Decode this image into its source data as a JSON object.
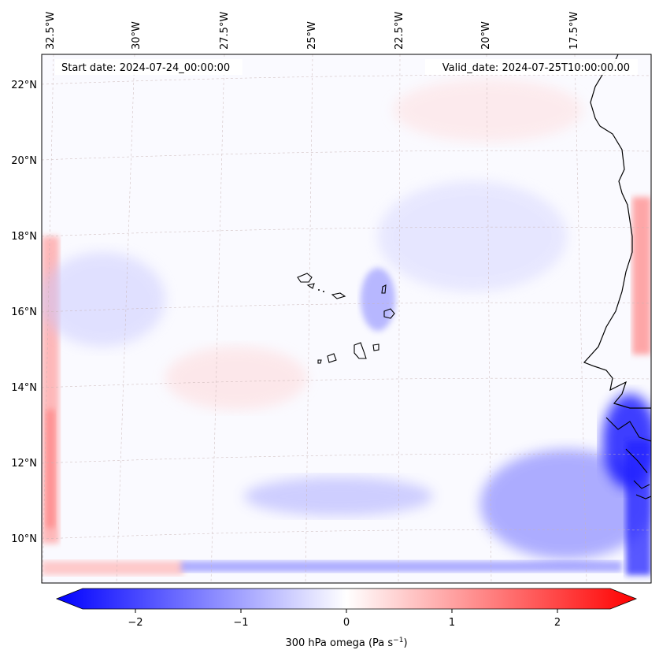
{
  "header": {
    "start_date": "Start date: 2024-07-24_00:00:00",
    "valid_date": "Valid_date: 2024-07-25T10:00:00.00"
  },
  "axes": {
    "longitude_labels": [
      "32.5°W",
      "30°W",
      "27.5°W",
      "25°W",
      "22.5°W",
      "20°W",
      "17.5°W"
    ],
    "latitude_labels": [
      "22°N",
      "20°N",
      "18°N",
      "16°N",
      "14°N",
      "12°N",
      "10°N"
    ]
  },
  "colorbar": {
    "label": "300 hPa omega (Pa s",
    "label_exp": "−1",
    "label_close": ")",
    "tick_labels": [
      "−2",
      "−1",
      "0",
      "1",
      "2"
    ],
    "tick_values": [
      -2,
      -1,
      0,
      1,
      2
    ],
    "vmin": -2.75,
    "vmax": 2.75,
    "colormap": "bwr",
    "low_color": "#0000ff",
    "mid_color": "#ffffff",
    "high_color": "#ff0000"
  },
  "colors": {
    "coastline": "#000000",
    "gridline": "#c8b4b4",
    "field_base": "#fafaff"
  }
}
